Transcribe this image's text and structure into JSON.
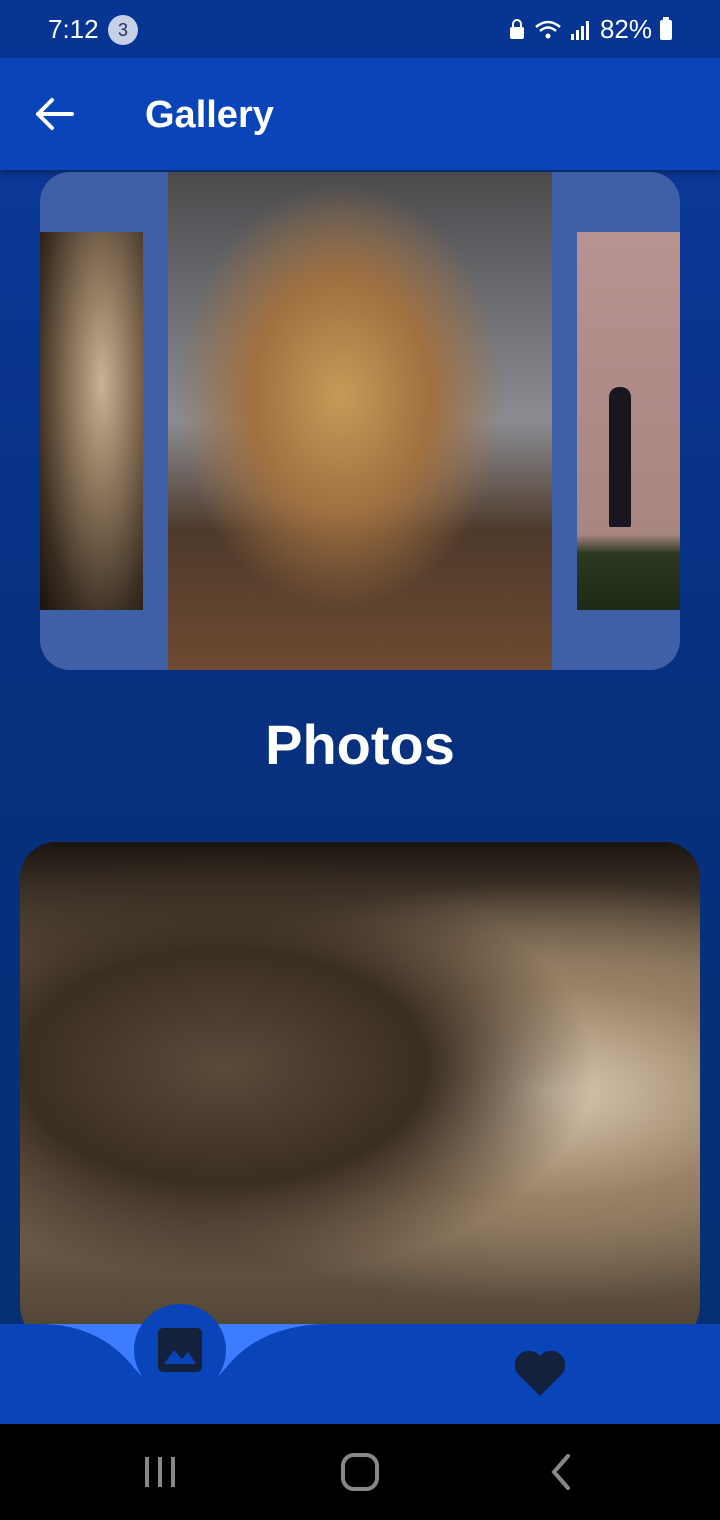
{
  "status_bar": {
    "time": "7:12",
    "notification_count": "3",
    "battery": "82%"
  },
  "app_bar": {
    "title": "Gallery"
  },
  "main": {
    "section_title": "Photos"
  },
  "bottom_nav": {
    "items": [
      {
        "icon": "image-icon",
        "active": true
      },
      {
        "icon": "heart-icon",
        "active": false
      }
    ]
  },
  "colors": {
    "primary": "#0a44b9",
    "accent": "#3d7cff",
    "background": "#07307f"
  }
}
